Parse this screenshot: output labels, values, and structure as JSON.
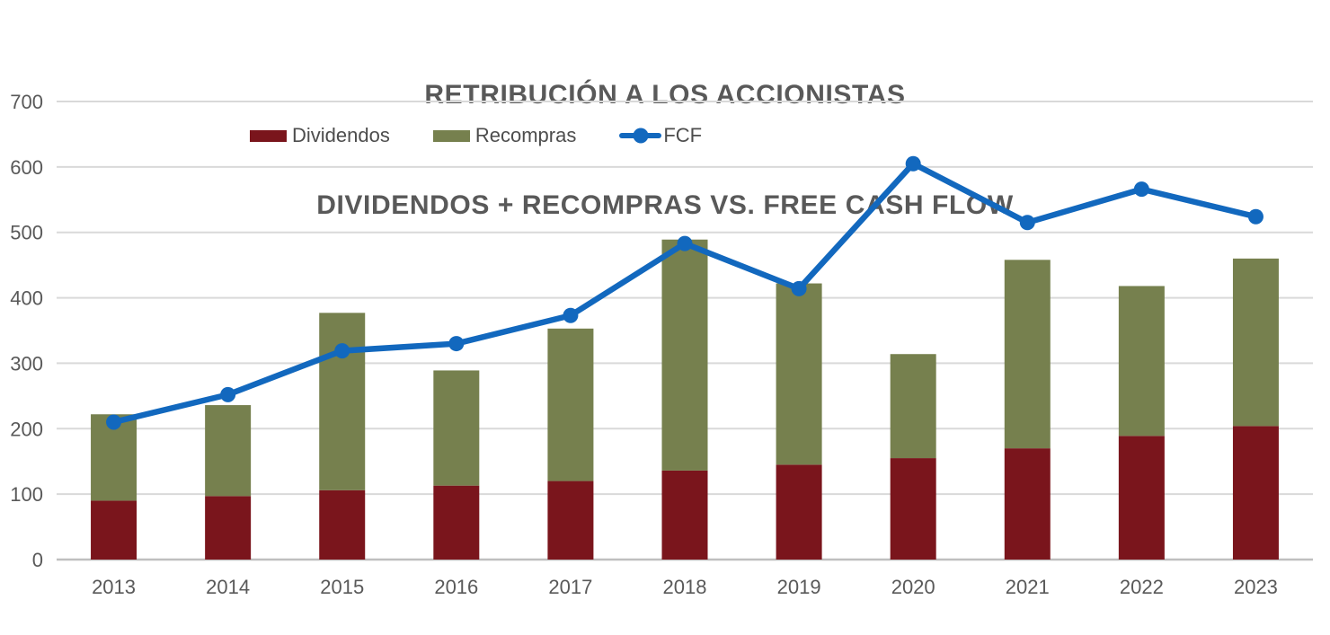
{
  "title": {
    "line1": "RETRIBUCIÓN A LOS ACCIONISTAS",
    "line2": "DIVIDENDOS + RECOMPRAS VS. FREE CASH FLOW"
  },
  "legend": {
    "items": [
      {
        "label": "Dividendos",
        "marker": "bar",
        "color": "#7A151C"
      },
      {
        "label": "Recompras",
        "marker": "bar",
        "color": "#76804E"
      },
      {
        "label": "FCF",
        "marker": "line",
        "color": "#1268BE"
      }
    ]
  },
  "axes": {
    "y_tick_labels": [
      "0",
      "100",
      "200",
      "300",
      "400",
      "500",
      "600",
      "700"
    ],
    "x_tick_labels": [
      "2013",
      "2014",
      "2015",
      "2016",
      "2017",
      "2018",
      "2019",
      "2020",
      "2021",
      "2022",
      "2023"
    ]
  },
  "chart_data": {
    "type": "combo (stacked bar + line)",
    "title": "RETRIBUCIÓN A LOS ACCIONISTAS — DIVIDENDOS + RECOMPRAS VS. FREE CASH FLOW",
    "categories": [
      "2013",
      "2014",
      "2015",
      "2016",
      "2017",
      "2018",
      "2019",
      "2020",
      "2021",
      "2022",
      "2023"
    ],
    "series": [
      {
        "name": "Dividendos",
        "type": "bar",
        "stacked": true,
        "color": "#7A151C",
        "values": [
          90,
          97,
          106,
          113,
          120,
          136,
          145,
          155,
          170,
          189,
          204
        ]
      },
      {
        "name": "Recompras",
        "type": "bar",
        "stacked": true,
        "color": "#76804E",
        "values": [
          132,
          139,
          271,
          176,
          233,
          353,
          277,
          159,
          288,
          229,
          256
        ]
      },
      {
        "name": "FCF",
        "type": "line",
        "color": "#1268BE",
        "values": [
          210,
          252,
          319,
          330,
          373,
          483,
          414,
          605,
          515,
          566,
          524
        ]
      }
    ],
    "stacked_totals": [
      222,
      236,
      377,
      289,
      353,
      489,
      422,
      314,
      458,
      418,
      460
    ],
    "xlabel": "",
    "ylabel": "",
    "ylim": [
      0,
      700
    ],
    "yticks": [
      0,
      100,
      200,
      300,
      400,
      500,
      600,
      700
    ],
    "grid": true,
    "legend_position": "top-inside-left"
  },
  "colors": {
    "background": "#FFFFFF",
    "title_text": "#595959",
    "axis_text": "#595959",
    "legend_text": "#4D4D4D",
    "gridline": "#D9D9D9",
    "axis_line": "#BFBFBF",
    "dividendos": "#7A151C",
    "recompras": "#76804E",
    "fcf_line": "#1268BE"
  }
}
